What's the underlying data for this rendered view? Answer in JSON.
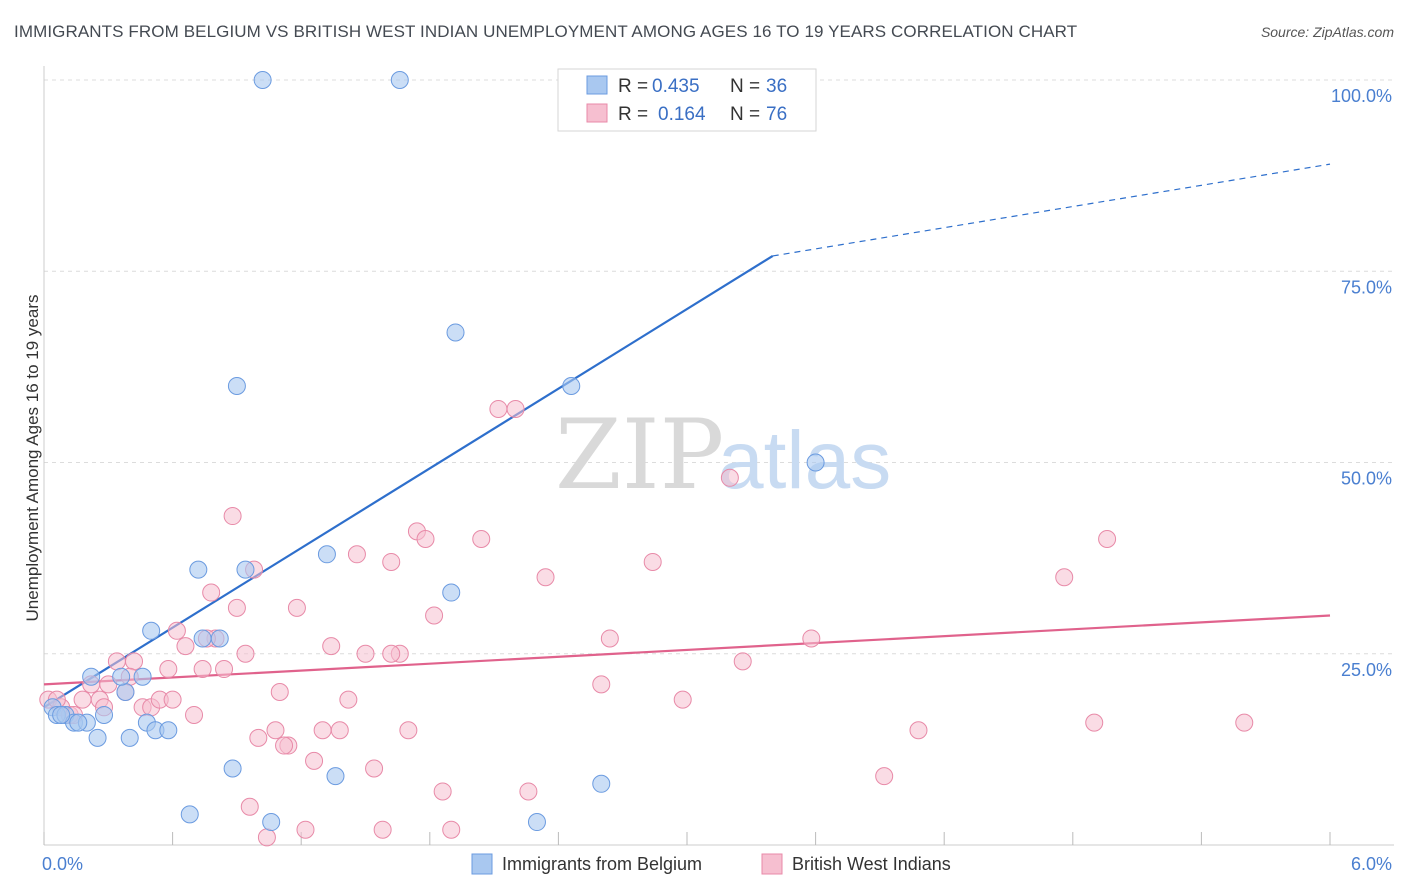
{
  "title": "IMMIGRANTS FROM BELGIUM VS BRITISH WEST INDIAN UNEMPLOYMENT AMONG AGES 16 TO 19 YEARS CORRELATION CHART",
  "source": "Source: ZipAtlas.com",
  "watermark": {
    "zip": "ZIP",
    "atlas": "atlas"
  },
  "colors": {
    "blue_fill": "#a9c8f0",
    "blue_stroke": "#6b9be0",
    "blue_line": "#2e6fcc",
    "pink_fill": "#f6bfd0",
    "pink_stroke": "#e88aa8",
    "pink_line": "#e0628c",
    "grid": "#dcdcdc",
    "tick_text": "#4a7fd0"
  },
  "legend": {
    "rows": [
      {
        "r_label": "R =",
        "r_value": "0.435",
        "n_label": "N =",
        "n_value": "36"
      },
      {
        "r_label": "R =",
        "r_value": "0.164",
        "n_label": "N =",
        "n_value": "76"
      }
    ]
  },
  "chart_data": {
    "type": "scatter",
    "title": "IMMIGRANTS FROM BELGIUM VS BRITISH WEST INDIAN UNEMPLOYMENT AMONG AGES 16 TO 19 YEARS CORRELATION CHART",
    "xlabel": "",
    "ylabel": "Unemployment Among Ages 16 to 19 years",
    "xlim": [
      0,
      6
    ],
    "ylim": [
      0,
      100
    ],
    "x_tick_labels": [
      "0.0%",
      "6.0%"
    ],
    "y_tick_labels": [
      "100.0%",
      "75.0%",
      "50.0%",
      "25.0%"
    ],
    "y_ticks": [
      100,
      75,
      50,
      25
    ],
    "series": [
      {
        "name": "Immigrants from Belgium",
        "trend": {
          "x0": 0,
          "y0": 18,
          "x1": 3.4,
          "y1": 77,
          "dash_x1": 6.0,
          "dash_y1": 89
        },
        "points": [
          [
            0.04,
            18
          ],
          [
            0.06,
            17
          ],
          [
            0.1,
            17
          ],
          [
            0.14,
            16
          ],
          [
            0.2,
            16
          ],
          [
            0.25,
            14
          ],
          [
            0.28,
            17
          ],
          [
            0.38,
            20
          ],
          [
            0.4,
            14
          ],
          [
            0.48,
            16
          ],
          [
            0.52,
            15
          ],
          [
            0.58,
            15
          ],
          [
            0.5,
            28
          ],
          [
            0.72,
            36
          ],
          [
            0.74,
            27
          ],
          [
            0.82,
            27
          ],
          [
            0.9,
            60
          ],
          [
            0.94,
            36
          ],
          [
            0.88,
            10
          ],
          [
            1.02,
            100
          ],
          [
            1.06,
            3
          ],
          [
            1.32,
            38
          ],
          [
            1.36,
            9
          ],
          [
            1.66,
            100
          ],
          [
            1.9,
            33
          ],
          [
            1.92,
            67
          ],
          [
            2.3,
            3
          ],
          [
            2.46,
            60
          ],
          [
            2.6,
            8
          ],
          [
            3.6,
            50
          ],
          [
            0.68,
            4
          ],
          [
            0.46,
            22
          ],
          [
            0.36,
            22
          ],
          [
            0.22,
            22
          ],
          [
            0.16,
            16
          ],
          [
            0.08,
            17
          ]
        ]
      },
      {
        "name": "British West Indians",
        "trend": {
          "x0": 0,
          "y0": 21,
          "x1": 6.0,
          "y1": 30
        },
        "points": [
          [
            0.02,
            19
          ],
          [
            0.08,
            18
          ],
          [
            0.12,
            17
          ],
          [
            0.18,
            19
          ],
          [
            0.22,
            21
          ],
          [
            0.26,
            19
          ],
          [
            0.3,
            21
          ],
          [
            0.34,
            24
          ],
          [
            0.38,
            20
          ],
          [
            0.42,
            24
          ],
          [
            0.46,
            18
          ],
          [
            0.5,
            18
          ],
          [
            0.54,
            19
          ],
          [
            0.58,
            23
          ],
          [
            0.62,
            28
          ],
          [
            0.66,
            26
          ],
          [
            0.7,
            17
          ],
          [
            0.74,
            23
          ],
          [
            0.78,
            33
          ],
          [
            0.8,
            27
          ],
          [
            0.84,
            23
          ],
          [
            0.88,
            43
          ],
          [
            0.9,
            31
          ],
          [
            0.94,
            25
          ],
          [
            0.98,
            36
          ],
          [
            1.0,
            14
          ],
          [
            1.04,
            1
          ],
          [
            1.08,
            15
          ],
          [
            1.1,
            20
          ],
          [
            1.14,
            13
          ],
          [
            1.18,
            31
          ],
          [
            1.22,
            2
          ],
          [
            1.26,
            11
          ],
          [
            1.3,
            15
          ],
          [
            1.34,
            26
          ],
          [
            1.38,
            15
          ],
          [
            1.42,
            19
          ],
          [
            1.46,
            38
          ],
          [
            1.5,
            25
          ],
          [
            1.54,
            10
          ],
          [
            1.58,
            2
          ],
          [
            1.62,
            37
          ],
          [
            1.66,
            25
          ],
          [
            1.7,
            15
          ],
          [
            1.74,
            41
          ],
          [
            1.78,
            40
          ],
          [
            1.82,
            30
          ],
          [
            1.86,
            7
          ],
          [
            1.9,
            2
          ],
          [
            2.04,
            40
          ],
          [
            2.12,
            57
          ],
          [
            2.2,
            57
          ],
          [
            2.26,
            7
          ],
          [
            2.34,
            35
          ],
          [
            2.6,
            21
          ],
          [
            2.64,
            27
          ],
          [
            2.84,
            37
          ],
          [
            2.98,
            19
          ],
          [
            3.2,
            48
          ],
          [
            3.26,
            24
          ],
          [
            3.58,
            27
          ],
          [
            3.92,
            9
          ],
          [
            4.08,
            15
          ],
          [
            4.76,
            35
          ],
          [
            4.9,
            16
          ],
          [
            4.96,
            40
          ],
          [
            5.6,
            16
          ],
          [
            0.06,
            19
          ],
          [
            0.14,
            17
          ],
          [
            0.28,
            18
          ],
          [
            0.4,
            22
          ],
          [
            0.6,
            19
          ],
          [
            0.76,
            27
          ],
          [
            0.96,
            5
          ],
          [
            1.12,
            13
          ],
          [
            1.62,
            25
          ]
        ]
      }
    ]
  },
  "bottom_legend": {
    "series1": "Immigrants from Belgium",
    "series2": "British West Indians"
  }
}
